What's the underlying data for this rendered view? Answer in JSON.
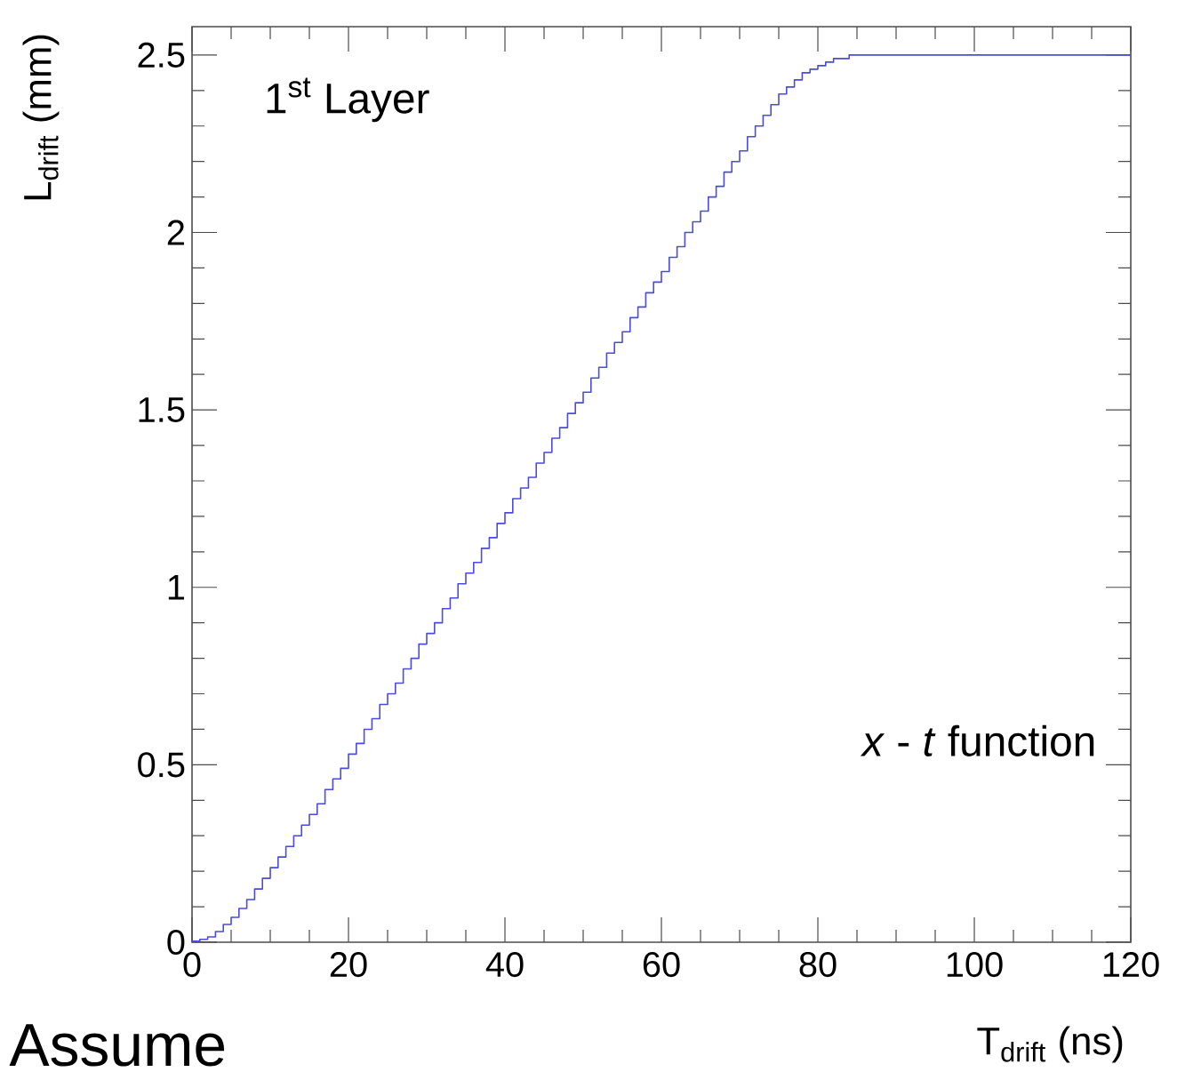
{
  "chart_data": {
    "type": "histogram",
    "bins": [
      0,
      1,
      2,
      3,
      4,
      5,
      6,
      7,
      8,
      9,
      10,
      11,
      12,
      13,
      14,
      15,
      16,
      17,
      18,
      19,
      20,
      21,
      22,
      23,
      24,
      25,
      26,
      27,
      28,
      29,
      30,
      31,
      32,
      33,
      34,
      35,
      36,
      37,
      38,
      39,
      40,
      41,
      42,
      43,
      44,
      45,
      46,
      47,
      48,
      49,
      50,
      51,
      52,
      53,
      54,
      55,
      56,
      57,
      58,
      59,
      60,
      61,
      62,
      63,
      64,
      65,
      66,
      67,
      68,
      69,
      70,
      71,
      72,
      73,
      74,
      75,
      76,
      77,
      78,
      79,
      80,
      81,
      82,
      83,
      84,
      85,
      86,
      87,
      88,
      89,
      90,
      91,
      92,
      93,
      94,
      95,
      96,
      97,
      98,
      99,
      100,
      101,
      102,
      103,
      104,
      105,
      106,
      107,
      108,
      109,
      110,
      111,
      112,
      113,
      114,
      115,
      116,
      117,
      118,
      119,
      120
    ],
    "values": [
      0.003,
      0.008,
      0.015,
      0.03,
      0.05,
      0.07,
      0.095,
      0.12,
      0.15,
      0.18,
      0.21,
      0.24,
      0.27,
      0.3,
      0.33,
      0.36,
      0.39,
      0.43,
      0.46,
      0.49,
      0.53,
      0.56,
      0.6,
      0.63,
      0.67,
      0.7,
      0.73,
      0.77,
      0.8,
      0.84,
      0.87,
      0.9,
      0.94,
      0.97,
      1.01,
      1.04,
      1.07,
      1.11,
      1.14,
      1.18,
      1.21,
      1.25,
      1.28,
      1.31,
      1.35,
      1.38,
      1.42,
      1.45,
      1.49,
      1.52,
      1.55,
      1.59,
      1.62,
      1.66,
      1.69,
      1.72,
      1.76,
      1.79,
      1.83,
      1.86,
      1.89,
      1.93,
      1.96,
      2.0,
      2.03,
      2.06,
      2.1,
      2.13,
      2.17,
      2.2,
      2.23,
      2.27,
      2.3,
      2.33,
      2.36,
      2.39,
      2.41,
      2.43,
      2.45,
      2.46,
      2.47,
      2.48,
      2.49,
      2.49,
      2.5,
      2.5,
      2.5,
      2.5,
      2.5,
      2.5,
      2.5,
      2.5,
      2.5,
      2.5,
      2.5,
      2.5,
      2.5,
      2.5,
      2.5,
      2.5,
      2.5,
      2.5,
      2.5,
      2.5,
      2.5,
      2.5,
      2.5,
      2.5,
      2.5,
      2.5,
      2.5,
      2.5,
      2.5,
      2.5,
      2.5,
      2.5,
      2.5,
      2.5,
      2.5,
      2.5
    ],
    "color": "#4b4bdc",
    "xlim": [
      0,
      120
    ],
    "ylim": [
      0,
      2.58
    ],
    "xticks": [
      0,
      20,
      40,
      60,
      80,
      100,
      120
    ],
    "yticks": [
      0,
      0.5,
      1,
      1.5,
      2,
      2.5
    ],
    "xlabel": "T$_{drift}$ (ns)",
    "ylabel": "L$_{drift}$ (mm)",
    "annotations": [
      "1$^{st}$ Layer",
      "*x* - *t* function",
      "Assume"
    ]
  }
}
